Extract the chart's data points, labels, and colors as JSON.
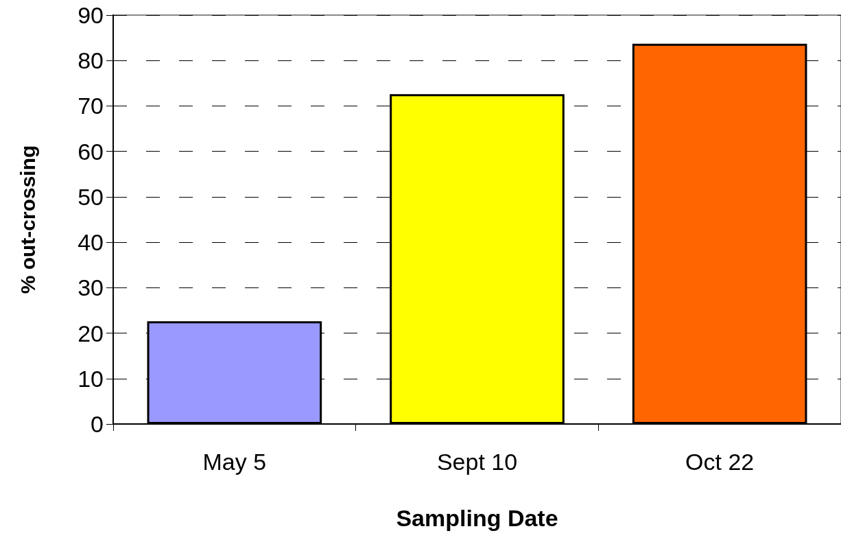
{
  "chart_data": {
    "type": "bar",
    "xlabel": "Sampling Date",
    "ylabel": "% out-crossing",
    "categories": [
      "May 5",
      "Sept 10",
      "Oct 22"
    ],
    "values": [
      22.6,
      72.6,
      83.7
    ],
    "colors": [
      "#9999ff",
      "#ffff00",
      "#ff6600"
    ],
    "ylim": [
      0,
      90
    ],
    "yticks": [
      0,
      10,
      20,
      30,
      40,
      50,
      60,
      70,
      80,
      90
    ],
    "grid": "y"
  }
}
